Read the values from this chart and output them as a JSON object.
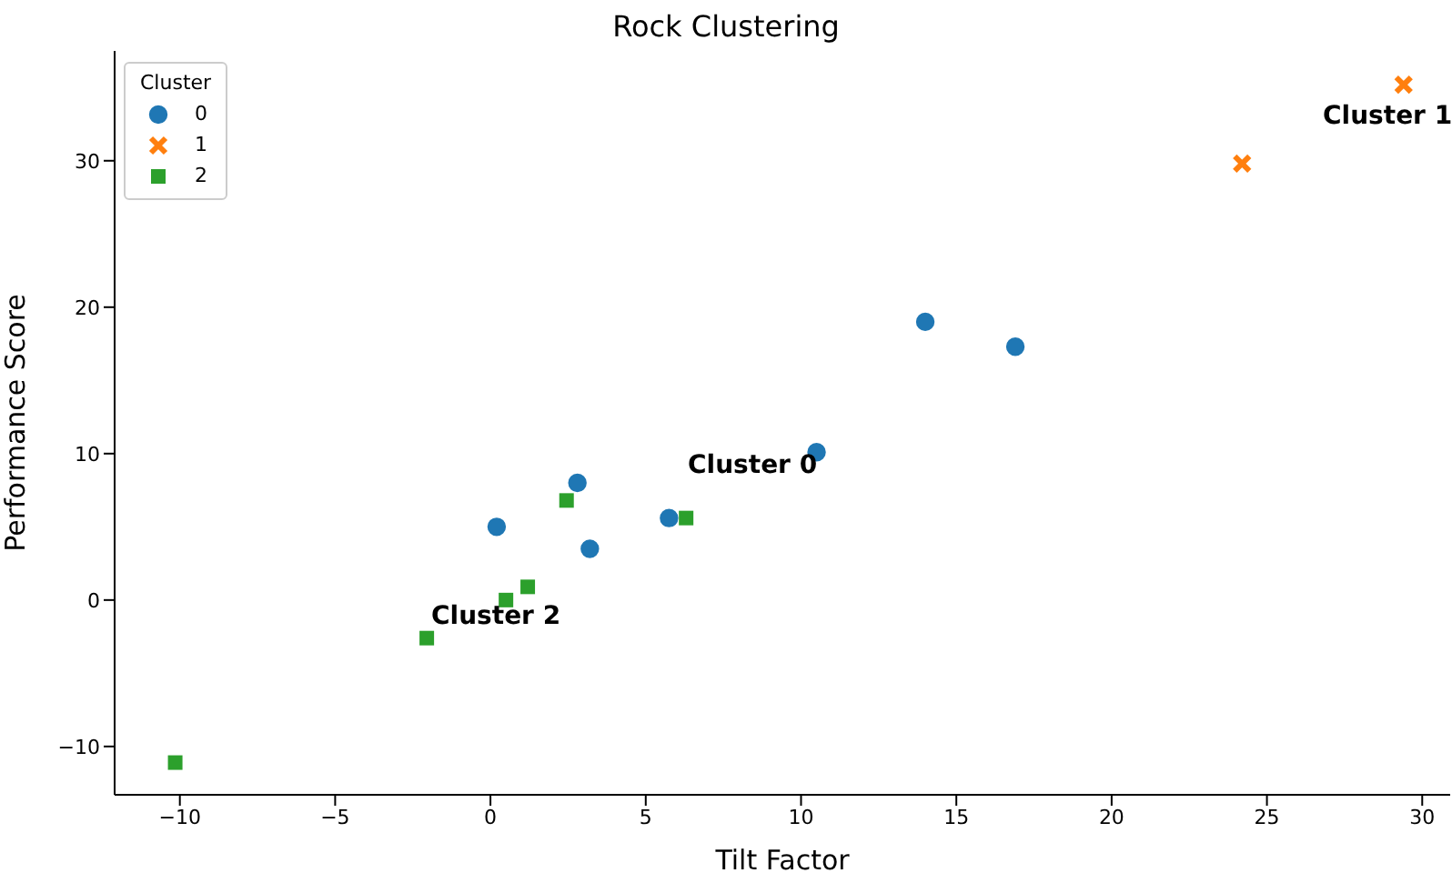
{
  "chart_data": {
    "type": "scatter",
    "title": "Rock Clustering",
    "xlabel": "Tilt Factor",
    "ylabel": "Performance Score",
    "legend_title": "Cluster",
    "legend": "top left",
    "grid": false,
    "xlim": [
      -12.1,
      30.9
    ],
    "ylim": [
      -13.3,
      37.5
    ],
    "xticks": [
      {
        "value": -10,
        "label": "−10"
      },
      {
        "value": -5,
        "label": "−5"
      },
      0,
      5,
      10,
      15,
      20,
      25,
      30
    ],
    "yticks": [
      {
        "value": -10,
        "label": "−10"
      },
      0,
      10,
      20,
      30
    ],
    "series": [
      {
        "name": "0",
        "color": "#1f77b4",
        "marker": "circle",
        "x": [
          0.2,
          2.8,
          3.2,
          5.75,
          10.5,
          14.0,
          16.9
        ],
        "values": [
          5.0,
          8.0,
          3.5,
          5.6,
          10.1,
          19.0,
          17.3
        ]
      },
      {
        "name": "1",
        "color": "#ff7f0e",
        "marker": "cross",
        "x": [
          24.2,
          29.4
        ],
        "values": [
          29.8,
          35.2
        ]
      },
      {
        "name": "2",
        "color": "#2ca02c",
        "marker": "square",
        "x": [
          -10.15,
          -2.05,
          0.5,
          1.2,
          2.45,
          6.3
        ],
        "values": [
          -11.1,
          -2.6,
          0.0,
          0.9,
          6.8,
          5.6
        ]
      }
    ],
    "annotations": [
      "Cluster 0",
      "Cluster 1",
      "Cluster 2"
    ]
  }
}
